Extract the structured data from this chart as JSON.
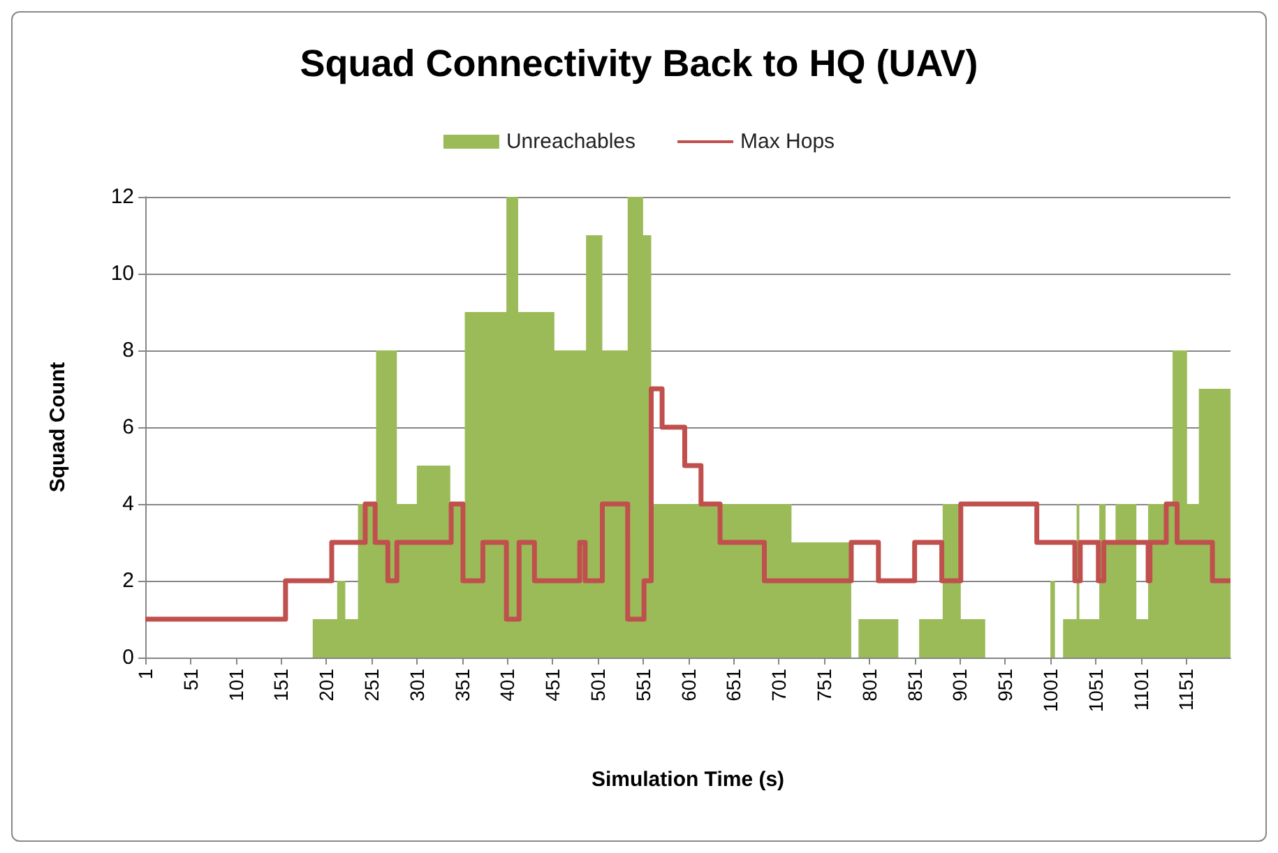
{
  "chart_data": {
    "type": "area",
    "title": "Squad Connectivity Back to HQ (UAV)",
    "xlabel": "Simulation Time (s)",
    "ylabel": "Squad Count",
    "series": [
      {
        "name": "Unreachables",
        "color": "#9bbb59",
        "x": [
          1,
          186,
          213,
          222,
          236,
          256,
          279,
          301,
          338,
          354,
          400,
          413,
          453,
          488,
          506,
          534,
          551,
          560,
          715,
          781,
          789,
          833,
          856,
          882,
          902,
          929,
          1001,
          1006,
          1015,
          1030,
          1033,
          1055,
          1062,
          1073,
          1096,
          1109,
          1136,
          1152,
          1165,
          1200
        ],
        "values": [
          0,
          1,
          2,
          1,
          4,
          8,
          4,
          5,
          4,
          9,
          12,
          9,
          8,
          11,
          8,
          12,
          11,
          4,
          3,
          0,
          1,
          0,
          1,
          4,
          1,
          0,
          2,
          0,
          1,
          4,
          1,
          4,
          3,
          4,
          1,
          4,
          8,
          4,
          7,
          7
        ]
      },
      {
        "name": "Max Hops",
        "type": "step",
        "color": "#c0504d",
        "x": [
          1,
          156,
          207,
          244,
          255,
          269,
          279,
          339,
          352,
          374,
          400,
          414,
          431,
          481,
          487,
          506,
          534,
          552,
          560,
          572,
          597,
          615,
          636,
          685,
          781,
          811,
          851,
          881,
          902,
          986,
          1028,
          1034,
          1054,
          1060,
          1109,
          1111,
          1129,
          1141,
          1180,
          1200
        ],
        "values": [
          1,
          2,
          3,
          4,
          3,
          2,
          3,
          4,
          2,
          3,
          1,
          3,
          2,
          3,
          2,
          4,
          1,
          2,
          7,
          6,
          5,
          4,
          3,
          2,
          3,
          2,
          3,
          2,
          4,
          3,
          2,
          3,
          2,
          3,
          2,
          3,
          4,
          3,
          2,
          2
        ]
      }
    ],
    "xlim": [
      1,
      1200
    ],
    "xticks": [
      1,
      51,
      101,
      151,
      201,
      251,
      301,
      351,
      401,
      451,
      501,
      551,
      601,
      651,
      701,
      751,
      801,
      851,
      901,
      951,
      1001,
      1051,
      1101,
      1151
    ],
    "ylim": [
      0,
      12
    ],
    "yticks": [
      0,
      2,
      4,
      6,
      8,
      10,
      12
    ],
    "grid": "y",
    "legend": "top",
    "marker": "none"
  }
}
